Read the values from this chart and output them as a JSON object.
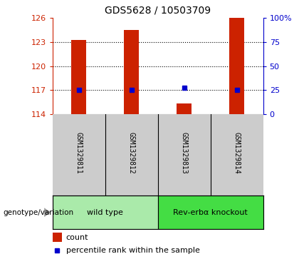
{
  "title": "GDS5628 / 10503709",
  "samples": [
    "GSM1329811",
    "GSM1329812",
    "GSM1329813",
    "GSM1329814"
  ],
  "counts": [
    123.3,
    124.5,
    115.3,
    126.0
  ],
  "percentile_ranks": [
    25.0,
    25.0,
    27.0,
    25.0
  ],
  "ymin": 114,
  "ymax": 126,
  "yticks": [
    114,
    117,
    120,
    123,
    126
  ],
  "y2ticks": [
    0,
    25,
    50,
    75,
    100
  ],
  "y2labels": [
    "0",
    "25",
    "50",
    "75",
    "100%"
  ],
  "bar_color": "#cc2200",
  "blue_color": "#0000cc",
  "groups": [
    {
      "label": "wild type",
      "indices": [
        0,
        1
      ],
      "color": "#aaeaaa"
    },
    {
      "label": "Rev-erbα knockout",
      "indices": [
        2,
        3
      ],
      "color": "#44dd44"
    }
  ],
  "genotype_label": "genotype/variation",
  "legend_count": "count",
  "legend_percentile": "percentile rank within the sample",
  "title_fontsize": 10,
  "tick_fontsize": 8,
  "sample_fontsize": 7,
  "group_fontsize": 8,
  "legend_fontsize": 8,
  "bar_width": 0.28,
  "sample_bg": "#cccccc",
  "spine_color": "#888888"
}
